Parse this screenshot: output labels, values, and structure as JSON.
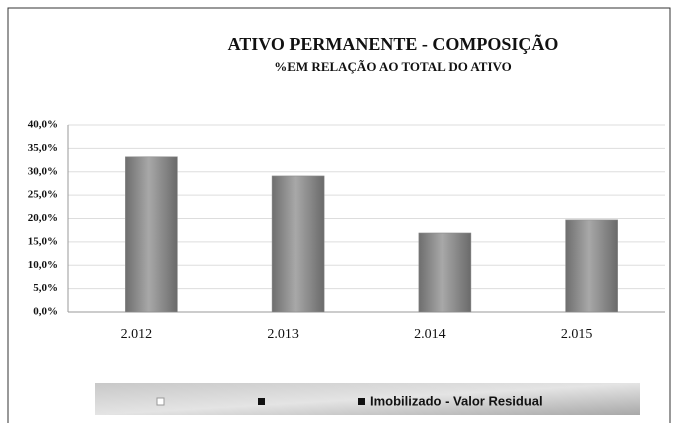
{
  "chart_data": {
    "type": "bar",
    "title": "ATIVO PERMANENTE  - COMPOSIÇÃO",
    "subtitle": "%EM RELAÇÃO AO TOTAL DO ATIVO",
    "categories": [
      "2.012",
      "2.013",
      "2.014",
      "2.015"
    ],
    "series": [
      {
        "name": "Imobilizado - Valor Residual",
        "color": "#8a8a8a",
        "values": [
          33.2,
          29.1,
          16.9,
          19.7
        ]
      }
    ],
    "ylim": [
      0,
      40
    ],
    "yticks": [
      {
        "value": 0,
        "label": "0,0%"
      },
      {
        "value": 5,
        "label": "5,0%"
      },
      {
        "value": 10,
        "label": "10,0%"
      },
      {
        "value": 15,
        "label": "15,0%"
      },
      {
        "value": 20,
        "label": "20,0%"
      },
      {
        "value": 25,
        "label": "25,0%"
      },
      {
        "value": 30,
        "label": "30,0%"
      },
      {
        "value": 35,
        "label": "35,0%"
      },
      {
        "value": 40,
        "label": "40,0%"
      }
    ],
    "grid": true
  }
}
